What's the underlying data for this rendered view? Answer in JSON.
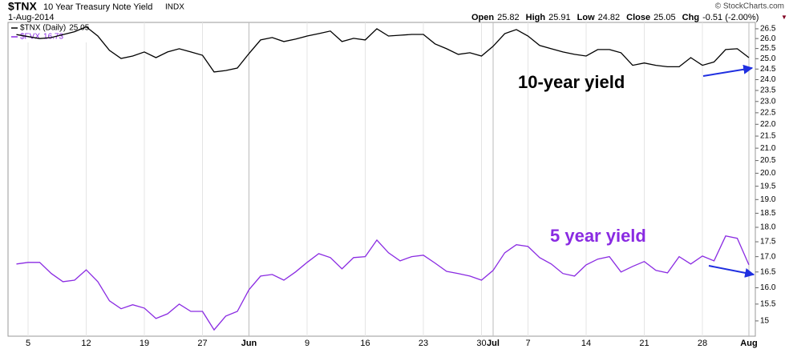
{
  "chart_data": {
    "type": "line",
    "title": "$TNX",
    "subtitle": "10 Year Treasury Note Yield",
    "exchange": "INDX",
    "date": "1-Aug-2014",
    "credit": "© StockCharts.com",
    "quote": [
      {
        "label": "Open",
        "value": 25.82
      },
      {
        "label": "High",
        "value": 25.91
      },
      {
        "label": "Low",
        "value": 24.82
      },
      {
        "label": "Close",
        "value": 25.05
      },
      {
        "label": "Chg",
        "value": "-0.51 (-2.00%)"
      }
    ],
    "annotations": [
      "10-year yield",
      "5 year yield"
    ],
    "log_scale": true,
    "categories": [
      null,
      "5",
      null,
      null,
      null,
      null,
      "12",
      null,
      null,
      null,
      null,
      "19",
      null,
      null,
      null,
      null,
      "27",
      null,
      null,
      null,
      "Jun",
      null,
      null,
      null,
      null,
      "9",
      null,
      null,
      null,
      null,
      "16",
      null,
      null,
      null,
      null,
      "23",
      null,
      null,
      null,
      null,
      "30",
      "Jul",
      null,
      null,
      "7",
      null,
      null,
      null,
      null,
      "14",
      null,
      null,
      null,
      null,
      "21",
      null,
      null,
      null,
      null,
      "28",
      null,
      null,
      null,
      "Aug"
    ],
    "series": [
      {
        "name": "$TNX (Daily)",
        "color": "#000000",
        "values": [
          26.2,
          26.1,
          26.0,
          26.05,
          26.2,
          26.35,
          26.6,
          26.13,
          25.41,
          25.01,
          25.13,
          25.33,
          25.05,
          25.33,
          25.49,
          25.33,
          25.17,
          24.36,
          24.43,
          24.55,
          25.25,
          25.93,
          26.05,
          25.85,
          25.97,
          26.13,
          26.25,
          26.38,
          25.85,
          26.01,
          25.93,
          26.5,
          26.13,
          26.17,
          26.21,
          26.21,
          25.73,
          25.49,
          25.21,
          25.29,
          25.13,
          25.61,
          26.25,
          26.46,
          26.13,
          25.65,
          25.49,
          25.33,
          25.21,
          25.13,
          25.45,
          25.45,
          25.29,
          24.68,
          24.79,
          24.68,
          24.61,
          24.61,
          25.05,
          24.68,
          24.84,
          25.45,
          25.49,
          25.05
        ]
      },
      {
        "name": "$FVX",
        "color": "#8a2be2",
        "values": [
          16.76,
          16.81,
          16.81,
          16.45,
          16.19,
          16.24,
          16.57,
          16.19,
          15.6,
          15.36,
          15.48,
          15.38,
          15.07,
          15.21,
          15.5,
          15.28,
          15.28,
          14.74,
          15.14,
          15.28,
          15.94,
          16.37,
          16.42,
          16.24,
          16.5,
          16.81,
          17.1,
          16.97,
          16.6,
          16.97,
          17.0,
          17.56,
          17.13,
          16.86,
          17.0,
          17.05,
          16.79,
          16.52,
          16.45,
          16.37,
          16.24,
          16.55,
          17.13,
          17.4,
          17.34,
          16.97,
          16.76,
          16.45,
          16.37,
          16.73,
          16.92,
          17.0,
          16.5,
          16.68,
          16.84,
          16.55,
          16.47,
          17.0,
          16.76,
          17.02,
          16.86,
          17.7,
          17.62,
          16.73
        ]
      }
    ],
    "ylim": [
      14.56,
      26.83
    ],
    "yticks": [
      15,
      15.5,
      {
        "value": 16,
        "label": "16.0"
      },
      16.5,
      {
        "value": 17,
        "label": "17.0"
      },
      17.5,
      {
        "value": 18,
        "label": "18.0"
      },
      18.5,
      {
        "value": 19,
        "label": "19.0"
      },
      19.5,
      {
        "value": 20,
        "label": "20.0"
      },
      20.5,
      {
        "value": 21,
        "label": "21.0"
      },
      21.5,
      {
        "value": 22,
        "label": "22.0"
      },
      22.5,
      {
        "value": 23,
        "label": "23.0"
      },
      23.5,
      {
        "value": 24,
        "label": "24.0"
      },
      24.5,
      {
        "value": 25,
        "label": "25.0"
      },
      25.5,
      {
        "value": 26,
        "label": "26.0"
      },
      26.5
    ]
  }
}
